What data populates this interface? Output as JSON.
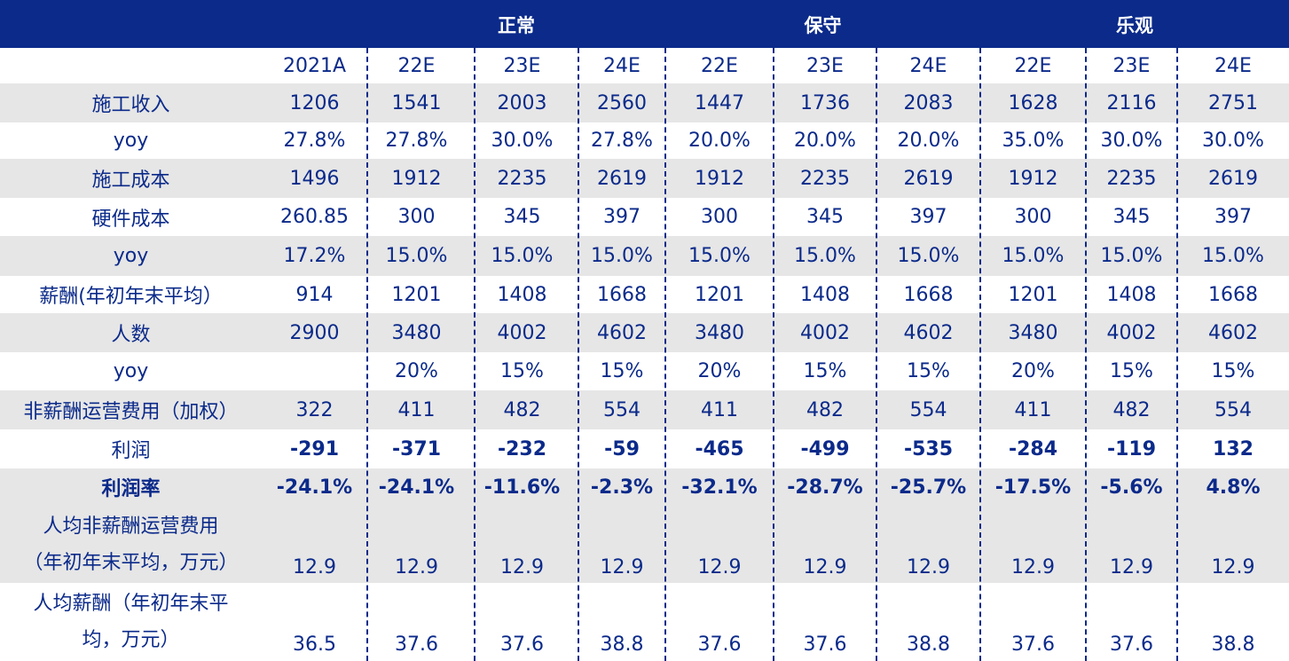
{
  "header": {
    "scenarios": [
      "正常",
      "保守",
      "乐观"
    ]
  },
  "columns": [
    "2021A",
    "22E",
    "23E",
    "24E",
    "22E",
    "23E",
    "24E",
    "22E",
    "23E",
    "24E"
  ],
  "rows": [
    {
      "label": "施工收入",
      "values": [
        "1206",
        "1541",
        "2003",
        "2560",
        "1447",
        "1736",
        "2083",
        "1628",
        "2116",
        "2751"
      ]
    },
    {
      "label": "yoy",
      "values": [
        "27.8%",
        "27.8%",
        "30.0%",
        "27.8%",
        "20.0%",
        "20.0%",
        "20.0%",
        "35.0%",
        "30.0%",
        "30.0%"
      ]
    },
    {
      "label": "施工成本",
      "values": [
        "1496",
        "1912",
        "2235",
        "2619",
        "1912",
        "2235",
        "2619",
        "1912",
        "2235",
        "2619"
      ]
    },
    {
      "label": "硬件成本",
      "values": [
        "260.85",
        "300",
        "345",
        "397",
        "300",
        "345",
        "397",
        "300",
        "345",
        "397"
      ]
    },
    {
      "label": "yoy",
      "values": [
        "17.2%",
        "15.0%",
        "15.0%",
        "15.0%",
        "15.0%",
        "15.0%",
        "15.0%",
        "15.0%",
        "15.0%",
        "15.0%"
      ]
    },
    {
      "label": "薪酬(年初年末平均）",
      "values": [
        "914",
        "1201",
        "1408",
        "1668",
        "1201",
        "1408",
        "1668",
        "1201",
        "1408",
        "1668"
      ]
    },
    {
      "label": "人数",
      "values": [
        "2900",
        "3480",
        "4002",
        "4602",
        "3480",
        "4002",
        "4602",
        "3480",
        "4002",
        "4602"
      ]
    },
    {
      "label": "yoy",
      "values": [
        "",
        "20%",
        "15%",
        "15%",
        "20%",
        "15%",
        "15%",
        "20%",
        "15%",
        "15%"
      ]
    },
    {
      "label": "非薪酬运营费用（加权）",
      "values": [
        "322",
        "411",
        "482",
        "554",
        "411",
        "482",
        "554",
        "411",
        "482",
        "554"
      ]
    },
    {
      "label": "利润",
      "values": [
        "-291",
        "-371",
        "-232",
        "-59",
        "-465",
        "-499",
        "-535",
        "-284",
        "-119",
        "132"
      ]
    },
    {
      "label": "利润率",
      "values": [
        "-24.1%",
        "-24.1%",
        "-11.6%",
        "-2.3%",
        "-32.1%",
        "-28.7%",
        "-25.7%",
        "-17.5%",
        "-5.6%",
        "4.8%"
      ]
    }
  ],
  "multiline_rows": [
    {
      "label_line1": "人均非薪酬运营费用",
      "label_line2": "（年初年末平均，万元）",
      "values": [
        "12.9",
        "12.9",
        "12.9",
        "12.9",
        "12.9",
        "12.9",
        "12.9",
        "12.9",
        "12.9",
        "12.9"
      ]
    },
    {
      "label_line1": "人均薪酬（年初年末平",
      "label_line2": "均，万元）",
      "values": [
        "36.5",
        "37.6",
        "37.6",
        "38.8",
        "37.6",
        "37.6",
        "38.8",
        "37.6",
        "37.6",
        "38.8"
      ]
    }
  ],
  "colors": {
    "header_bg": "#0b2a8a",
    "text": "#0b2a8a",
    "shade": "#e6e6e6"
  }
}
